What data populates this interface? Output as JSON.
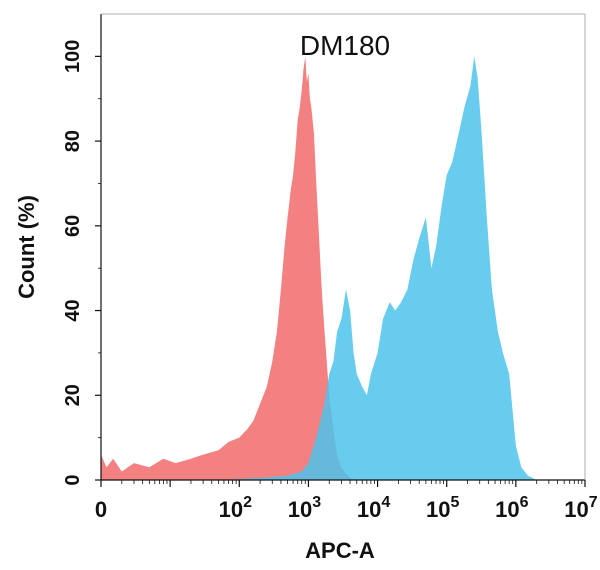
{
  "chart_data": {
    "type": "area",
    "title": "DM180",
    "xlabel": "APC-A",
    "ylabel": "Count  (%)",
    "x_scale": "log",
    "xlim": [
      1,
      10000000
    ],
    "ylim": [
      0,
      110
    ],
    "x_tick_labels": [
      {
        "value": 1,
        "base": "0",
        "exp": ""
      },
      {
        "value": 100,
        "base": "10",
        "exp": "2"
      },
      {
        "value": 1000,
        "base": "10",
        "exp": "3"
      },
      {
        "value": 10000,
        "base": "10",
        "exp": "4"
      },
      {
        "value": 100000,
        "base": "10",
        "exp": "5"
      },
      {
        "value": 1000000,
        "base": "10",
        "exp": "6"
      },
      {
        "value": 10000000,
        "base": "10",
        "exp": "7"
      }
    ],
    "y_ticks": [
      0,
      20,
      40,
      60,
      80,
      100
    ],
    "grid": false,
    "series": [
      {
        "color": "#f26b6b",
        "opacity": 0.85,
        "x": [
          1,
          1.2,
          1.5,
          2,
          3,
          5,
          8,
          12,
          20,
          30,
          50,
          70,
          100,
          130,
          160,
          200,
          250,
          300,
          350,
          400,
          450,
          500,
          550,
          600,
          650,
          700,
          750,
          800,
          850,
          900,
          950,
          1000,
          1050,
          1100,
          1200,
          1300,
          1400,
          1500,
          1600,
          1800,
          2000,
          2300,
          2600,
          3000,
          3500,
          4000,
          5000
        ],
        "y": [
          6,
          3,
          5,
          2,
          4,
          3,
          5,
          4,
          5,
          6,
          7,
          9,
          10,
          12,
          14,
          18,
          22,
          28,
          35,
          45,
          55,
          62,
          68,
          72,
          78,
          85,
          88,
          92,
          97,
          100,
          94,
          96,
          90,
          88,
          82,
          70,
          60,
          50,
          42,
          30,
          20,
          12,
          6,
          3,
          1.5,
          0.5,
          0
        ]
      },
      {
        "color": "#4dc3ec",
        "opacity": 0.85,
        "x": [
          8,
          15,
          30,
          60,
          120,
          250,
          500,
          800,
          1000,
          1300,
          1700,
          2000,
          2300,
          2600,
          3000,
          3500,
          4000,
          4500,
          5000,
          6000,
          7000,
          8000,
          10000,
          12000,
          15000,
          18000,
          22000,
          27000,
          33000,
          40000,
          50000,
          60000,
          70000,
          85000,
          100000,
          120000,
          150000,
          180000,
          220000,
          250000,
          280000,
          320000,
          380000,
          450000,
          550000,
          650000,
          800000,
          1000000,
          1200000,
          1500000,
          2000000
        ],
        "y": [
          0,
          0,
          0,
          0,
          0.3,
          0.6,
          1,
          2,
          4,
          10,
          18,
          25,
          28,
          35,
          38,
          45,
          40,
          30,
          25,
          22,
          20,
          25,
          30,
          38,
          42,
          40,
          42,
          45,
          52,
          57,
          62,
          50,
          55,
          65,
          72,
          75,
          82,
          88,
          93,
          100,
          95,
          82,
          62,
          45,
          35,
          30,
          25,
          8,
          3,
          1,
          0
        ]
      }
    ]
  }
}
